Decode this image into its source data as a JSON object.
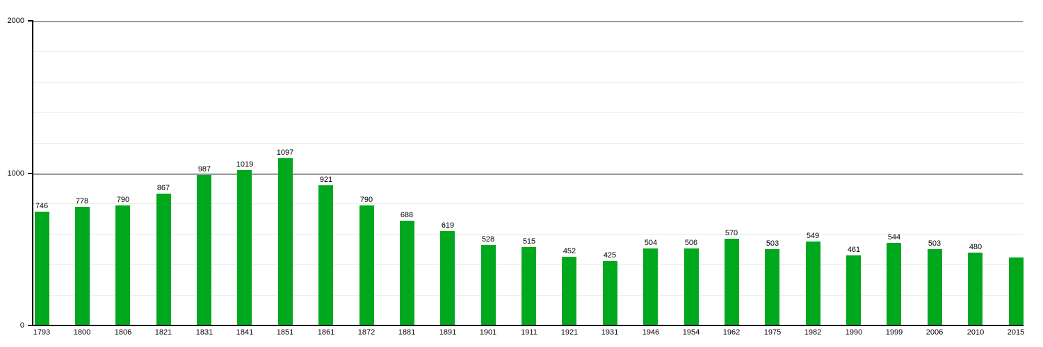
{
  "chart_data": {
    "type": "bar",
    "title": "",
    "xlabel": "",
    "ylabel": "",
    "categories": [
      "1793",
      "1800",
      "1806",
      "1821",
      "1831",
      "1841",
      "1851",
      "1861",
      "1872",
      "1881",
      "1891",
      "1901",
      "1911",
      "1921",
      "1931",
      "1946",
      "1954",
      "1962",
      "1975",
      "1982",
      "1990",
      "1999",
      "2006",
      "2010",
      "2015"
    ],
    "values": [
      746,
      778,
      790,
      867,
      987,
      1019,
      1097,
      921,
      790,
      688,
      619,
      528,
      515,
      452,
      425,
      504,
      506,
      570,
      503,
      549,
      461,
      544,
      503,
      480,
      445
    ],
    "data_labels": [
      "746",
      "778",
      "790",
      "867",
      "987",
      "1019",
      "1097",
      "921",
      "790",
      "688",
      "619",
      "528",
      "515",
      "452",
      "425",
      "504",
      "506",
      "570",
      "503",
      "549",
      "461",
      "544",
      "503",
      "480",
      ""
    ],
    "ylim": [
      0,
      2000
    ],
    "ytick_values": [
      0,
      1000,
      2000
    ],
    "ytick_labels": [
      "0",
      "1000",
      "2000"
    ],
    "minor_gridline_interval": 200,
    "grid": "on",
    "legend": "none",
    "colors": {
      "bar": "#00a81e",
      "major_gridline": "#999999",
      "minor_gridline": "#ececec",
      "axis": "#000000",
      "text": "#000000",
      "background": "#ffffff"
    }
  }
}
